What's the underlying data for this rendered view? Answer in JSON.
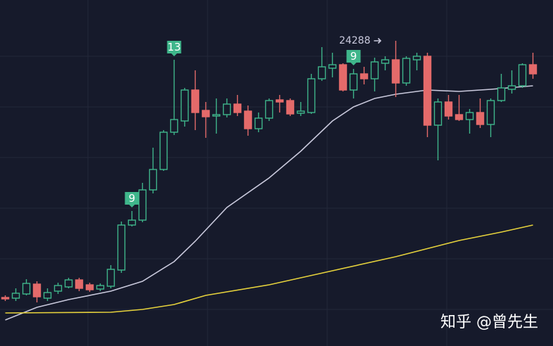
{
  "chart_data": {
    "type": "candlestick",
    "xlim": [
      -0.5,
      51.9
    ],
    "ylim": [
      15608,
      25448
    ],
    "up_color": "#3fb68b",
    "down_color": "#e46a6a",
    "candles": {
      "open": [
        16988,
        16968,
        17088,
        17368,
        16968,
        17168,
        17288,
        17488,
        17348,
        17228,
        17308,
        17768,
        19048,
        19188,
        20048,
        20628,
        21688,
        22008,
        22888,
        22308,
        22148,
        22188,
        22488,
        22288,
        21788,
        22088,
        22608,
        22588,
        22228,
        22248,
        23208,
        23508,
        23608,
        22888,
        23348,
        23208,
        23648,
        23748,
        23088,
        23748,
        23848,
        21888,
        22548,
        22188,
        22048,
        22248,
        21908,
        22588,
        22908,
        23008,
        23608
      ],
      "high": [
        17048,
        17248,
        17508,
        17448,
        17248,
        17408,
        17548,
        17548,
        17408,
        17388,
        17908,
        19148,
        19448,
        20248,
        21248,
        21748,
        23748,
        22948,
        23448,
        22548,
        22648,
        22648,
        22748,
        22448,
        22248,
        22648,
        22748,
        22648,
        22548,
        23348,
        24108,
        23948,
        23648,
        23488,
        23548,
        23808,
        23848,
        24288,
        23848,
        23948,
        23948,
        22648,
        22748,
        22748,
        22348,
        22648,
        22648,
        23348,
        23448,
        23648,
        23948
      ],
      "low": [
        16888,
        16888,
        17048,
        16848,
        16888,
        17088,
        17248,
        17168,
        17148,
        17168,
        17248,
        17688,
        19008,
        19128,
        19948,
        20588,
        21608,
        21848,
        21748,
        21528,
        21648,
        22108,
        22148,
        21588,
        21688,
        22008,
        22248,
        22148,
        22148,
        22208,
        23148,
        23248,
        22848,
        22648,
        23048,
        22848,
        23448,
        22688,
        23008,
        23448,
        21548,
        20888,
        22048,
        22008,
        21648,
        21808,
        21548,
        22548,
        22788,
        22948,
        23208
      ],
      "close": [
        16948,
        17108,
        17388,
        17008,
        17128,
        17328,
        17488,
        17248,
        17208,
        17328,
        17788,
        19048,
        19188,
        20048,
        20628,
        21688,
        22048,
        22888,
        22248,
        22128,
        22188,
        22488,
        22248,
        21788,
        22088,
        22588,
        22548,
        22208,
        22288,
        23208,
        23548,
        23608,
        22888,
        23348,
        23208,
        23688,
        23748,
        23088,
        23788,
        23848,
        21888,
        22548,
        22148,
        22048,
        22248,
        21908,
        22588,
        22948,
        23008,
        23608,
        23348
      ]
    },
    "lines": [
      {
        "color": "#c9c9dc",
        "x": [
          0,
          3,
          6,
          10,
          13,
          16,
          18,
          21,
          25,
          28,
          31,
          33,
          35,
          37,
          40,
          43,
          46,
          50
        ],
        "values": [
          16348,
          16708,
          16928,
          17168,
          17448,
          18008,
          18588,
          19548,
          20388,
          21148,
          22008,
          22408,
          22648,
          22768,
          22888,
          22848,
          22908,
          23008
        ]
      },
      {
        "color": "#e6d23c",
        "x": [
          0,
          10,
          13,
          16,
          19,
          25,
          31,
          37,
          43,
          47,
          50
        ],
        "values": [
          16548,
          16568,
          16648,
          16788,
          17048,
          17348,
          17748,
          18148,
          18608,
          18848,
          19048
        ]
      }
    ],
    "badges": [
      {
        "text": "9",
        "index": 12
      },
      {
        "text": "13",
        "index": 16
      },
      {
        "text": "9",
        "index": 33
      }
    ],
    "high_label": {
      "value": 24288,
      "index": 37
    },
    "watermark": "知乎 @曾先生"
  }
}
